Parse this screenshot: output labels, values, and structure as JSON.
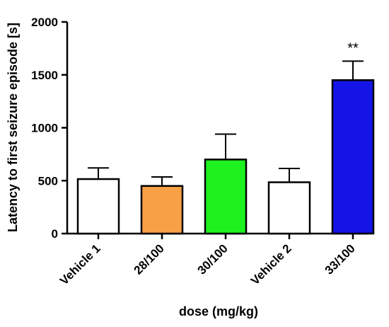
{
  "chart_data": {
    "type": "bar",
    "title": "",
    "xlabel": "dose (mg/kg)",
    "ylabel": "Latency to first seizure episode [s]",
    "ylim": [
      0,
      2000
    ],
    "yticks": [
      0,
      500,
      1000,
      1500,
      2000
    ],
    "categories": [
      "Vehicle 1",
      "28/100",
      "30/100",
      "Vehicle 2",
      "33/100"
    ],
    "values": [
      515,
      450,
      700,
      485,
      1450
    ],
    "errors": [
      105,
      85,
      240,
      130,
      180
    ],
    "colors": [
      "#ffffff",
      "#f7a045",
      "#1ef21e",
      "#ffffff",
      "#1414e6"
    ],
    "annotations": [
      {
        "category": "33/100",
        "text": "**"
      }
    ],
    "grid": false,
    "legend": "none"
  }
}
